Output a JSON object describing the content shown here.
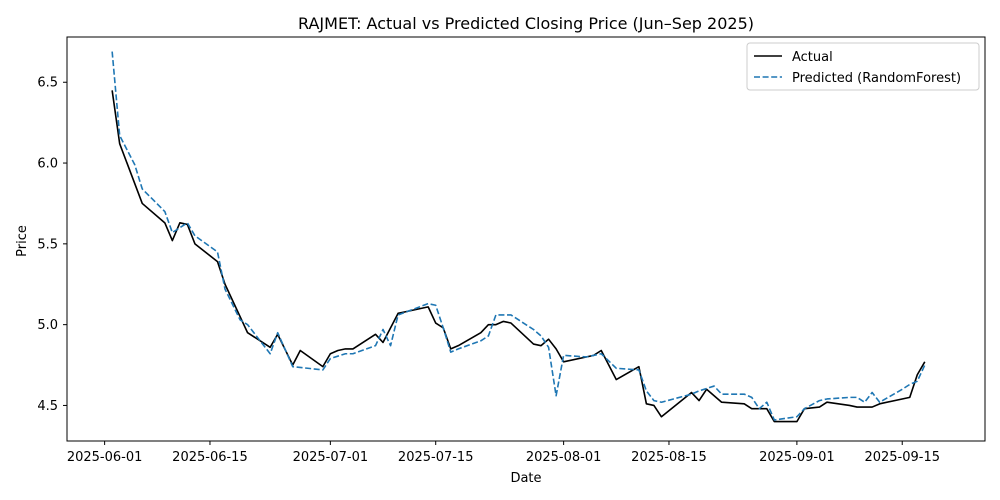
{
  "chart_data": {
    "type": "line",
    "title": "RAJMET: Actual vs Predicted Closing Price (Jun–Sep 2025)",
    "xlabel": "Date",
    "ylabel": "Price",
    "xlim": [
      "2025-05-27",
      "2025-09-26"
    ],
    "ylim": [
      4.28,
      6.78
    ],
    "x_ticks": [
      "2025-06-01",
      "2025-06-15",
      "2025-07-01",
      "2025-07-15",
      "2025-08-01",
      "2025-08-15",
      "2025-09-01",
      "2025-09-15"
    ],
    "y_ticks": [
      4.5,
      5.0,
      5.5,
      6.0,
      6.5
    ],
    "y_tick_labels": [
      "4.5",
      "5.0",
      "5.5",
      "6.0",
      "6.5"
    ],
    "grid": false,
    "legend_position": "top-right",
    "series": [
      {
        "name": "Actual",
        "color": "#000000",
        "style": "solid",
        "points": [
          [
            "2025-06-02",
            6.45
          ],
          [
            "2025-06-03",
            6.12
          ],
          [
            "2025-06-06",
            5.75
          ],
          [
            "2025-06-09",
            5.63
          ],
          [
            "2025-06-10",
            5.52
          ],
          [
            "2025-06-11",
            5.63
          ],
          [
            "2025-06-12",
            5.62
          ],
          [
            "2025-06-13",
            5.5
          ],
          [
            "2025-06-16",
            5.39
          ],
          [
            "2025-06-17",
            5.25
          ],
          [
            "2025-06-19",
            5.05
          ],
          [
            "2025-06-20",
            4.95
          ],
          [
            "2025-06-23",
            4.86
          ],
          [
            "2025-06-24",
            4.94
          ],
          [
            "2025-06-26",
            4.75
          ],
          [
            "2025-06-27",
            4.84
          ],
          [
            "2025-06-30",
            4.74
          ],
          [
            "2025-07-01",
            4.82
          ],
          [
            "2025-07-02",
            4.84
          ],
          [
            "2025-07-03",
            4.85
          ],
          [
            "2025-07-04",
            4.85
          ],
          [
            "2025-07-07",
            4.94
          ],
          [
            "2025-07-08",
            4.89
          ],
          [
            "2025-07-10",
            5.07
          ],
          [
            "2025-07-11",
            5.08
          ],
          [
            "2025-07-14",
            5.11
          ],
          [
            "2025-07-15",
            5.01
          ],
          [
            "2025-07-16",
            4.98
          ],
          [
            "2025-07-17",
            4.85
          ],
          [
            "2025-07-18",
            4.87
          ],
          [
            "2025-07-21",
            4.95
          ],
          [
            "2025-07-22",
            5.0
          ],
          [
            "2025-07-23",
            5.0
          ],
          [
            "2025-07-24",
            5.02
          ],
          [
            "2025-07-25",
            5.01
          ],
          [
            "2025-07-28",
            4.88
          ],
          [
            "2025-07-29",
            4.87
          ],
          [
            "2025-07-30",
            4.91
          ],
          [
            "2025-07-31",
            4.85
          ],
          [
            "2025-08-01",
            4.77
          ],
          [
            "2025-08-05",
            4.81
          ],
          [
            "2025-08-06",
            4.84
          ],
          [
            "2025-08-08",
            4.66
          ],
          [
            "2025-08-11",
            4.74
          ],
          [
            "2025-08-12",
            4.51
          ],
          [
            "2025-08-13",
            4.5
          ],
          [
            "2025-08-14",
            4.43
          ],
          [
            "2025-08-18",
            4.58
          ],
          [
            "2025-08-19",
            4.53
          ],
          [
            "2025-08-20",
            4.6
          ],
          [
            "2025-08-22",
            4.52
          ],
          [
            "2025-08-25",
            4.51
          ],
          [
            "2025-08-26",
            4.48
          ],
          [
            "2025-08-28",
            4.48
          ],
          [
            "2025-08-29",
            4.4
          ],
          [
            "2025-09-01",
            4.4
          ],
          [
            "2025-09-02",
            4.48
          ],
          [
            "2025-09-04",
            4.49
          ],
          [
            "2025-09-05",
            4.52
          ],
          [
            "2025-09-08",
            4.5
          ],
          [
            "2025-09-09",
            4.49
          ],
          [
            "2025-09-11",
            4.49
          ],
          [
            "2025-09-12",
            4.51
          ],
          [
            "2025-09-16",
            4.55
          ],
          [
            "2025-09-17",
            4.69
          ],
          [
            "2025-09-18",
            4.77
          ]
        ]
      },
      {
        "name": "Predicted (RandomForest)",
        "color": "#1f77b4",
        "style": "dashed",
        "points": [
          [
            "2025-06-02",
            6.69
          ],
          [
            "2025-06-03",
            6.17
          ],
          [
            "2025-06-05",
            5.99
          ],
          [
            "2025-06-06",
            5.84
          ],
          [
            "2025-06-09",
            5.7
          ],
          [
            "2025-06-10",
            5.57
          ],
          [
            "2025-06-11",
            5.6
          ],
          [
            "2025-06-12",
            5.63
          ],
          [
            "2025-06-13",
            5.55
          ],
          [
            "2025-06-16",
            5.45
          ],
          [
            "2025-06-17",
            5.22
          ],
          [
            "2025-06-19",
            5.03
          ],
          [
            "2025-06-20",
            5.0
          ],
          [
            "2025-06-23",
            4.82
          ],
          [
            "2025-06-24",
            4.95
          ],
          [
            "2025-06-26",
            4.74
          ],
          [
            "2025-06-30",
            4.72
          ],
          [
            "2025-07-01",
            4.79
          ],
          [
            "2025-07-03",
            4.82
          ],
          [
            "2025-07-04",
            4.82
          ],
          [
            "2025-07-07",
            4.87
          ],
          [
            "2025-07-08",
            4.97
          ],
          [
            "2025-07-09",
            4.87
          ],
          [
            "2025-07-10",
            5.06
          ],
          [
            "2025-07-14",
            5.13
          ],
          [
            "2025-07-15",
            5.12
          ],
          [
            "2025-07-16",
            4.98
          ],
          [
            "2025-07-17",
            4.83
          ],
          [
            "2025-07-18",
            4.85
          ],
          [
            "2025-07-21",
            4.9
          ],
          [
            "2025-07-22",
            4.93
          ],
          [
            "2025-07-23",
            5.06
          ],
          [
            "2025-07-25",
            5.06
          ],
          [
            "2025-07-28",
            4.97
          ],
          [
            "2025-07-29",
            4.93
          ],
          [
            "2025-07-30",
            4.86
          ],
          [
            "2025-07-31",
            4.56
          ],
          [
            "2025-08-01",
            4.81
          ],
          [
            "2025-08-04",
            4.8
          ],
          [
            "2025-08-06",
            4.82
          ],
          [
            "2025-08-08",
            4.73
          ],
          [
            "2025-08-11",
            4.72
          ],
          [
            "2025-08-12",
            4.59
          ],
          [
            "2025-08-13",
            4.53
          ],
          [
            "2025-08-14",
            4.52
          ],
          [
            "2025-08-18",
            4.57
          ],
          [
            "2025-08-19",
            4.59
          ],
          [
            "2025-08-21",
            4.62
          ],
          [
            "2025-08-22",
            4.57
          ],
          [
            "2025-08-25",
            4.57
          ],
          [
            "2025-08-26",
            4.55
          ],
          [
            "2025-08-27",
            4.48
          ],
          [
            "2025-08-28",
            4.52
          ],
          [
            "2025-08-29",
            4.41
          ],
          [
            "2025-09-01",
            4.43
          ],
          [
            "2025-09-02",
            4.48
          ],
          [
            "2025-09-04",
            4.53
          ],
          [
            "2025-09-05",
            4.54
          ],
          [
            "2025-09-08",
            4.55
          ],
          [
            "2025-09-09",
            4.55
          ],
          [
            "2025-09-10",
            4.52
          ],
          [
            "2025-09-11",
            4.58
          ],
          [
            "2025-09-12",
            4.52
          ],
          [
            "2025-09-15",
            4.6
          ],
          [
            "2025-09-16",
            4.63
          ],
          [
            "2025-09-17",
            4.65
          ],
          [
            "2025-09-18",
            4.75
          ]
        ]
      }
    ]
  }
}
